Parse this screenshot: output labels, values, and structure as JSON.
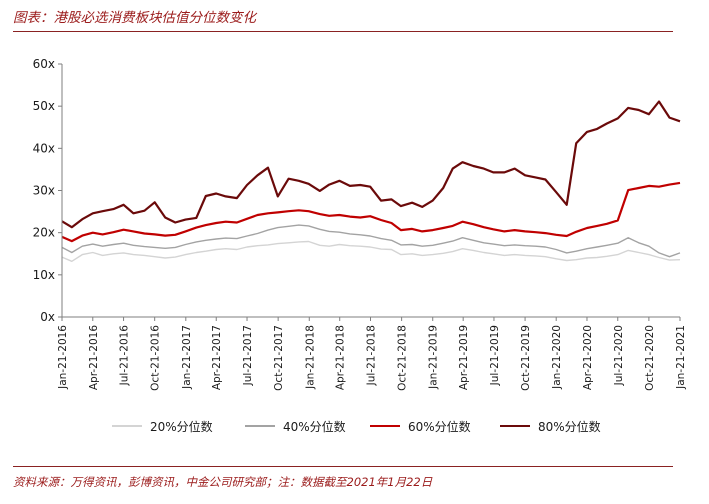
{
  "title": "图表：港股必选消费板块估值分位数变化",
  "source": "资料来源：万得资讯，彭博资讯，中金公司研究部；注：数据截至2021年1月22日",
  "chart_data": {
    "type": "line",
    "x": [
      "2016-01-21",
      "2016-02-19",
      "2016-03-21",
      "2016-04-21",
      "2016-05-20",
      "2016-06-21",
      "2016-07-21",
      "2016-08-19",
      "2016-09-21",
      "2016-10-21",
      "2016-11-21",
      "2016-12-21",
      "2017-01-20",
      "2017-02-21",
      "2017-03-21",
      "2017-04-21",
      "2017-05-19",
      "2017-06-21",
      "2017-07-21",
      "2017-08-21",
      "2017-09-21",
      "2017-10-20",
      "2017-11-21",
      "2017-12-21",
      "2018-01-19",
      "2018-02-21",
      "2018-03-21",
      "2018-04-20",
      "2018-05-21",
      "2018-06-21",
      "2018-07-20",
      "2018-08-21",
      "2018-09-21",
      "2018-10-19",
      "2018-11-21",
      "2018-12-21",
      "2019-01-21",
      "2019-02-21",
      "2019-03-21",
      "2019-04-19",
      "2019-05-21",
      "2019-06-21",
      "2019-07-19",
      "2019-08-21",
      "2019-09-20",
      "2019-10-21",
      "2019-11-21",
      "2019-12-20",
      "2020-01-21",
      "2020-02-21",
      "2020-03-20",
      "2020-04-21",
      "2020-05-21",
      "2020-06-19",
      "2020-07-21",
      "2020-08-21",
      "2020-09-21",
      "2020-10-21",
      "2020-11-20",
      "2020-12-21",
      "2021-01-21"
    ],
    "series": [
      {
        "name": "20%分位数",
        "color": "#d4d4d4",
        "values": [
          14.2,
          13.2,
          14.8,
          15.3,
          14.6,
          15.0,
          15.2,
          14.8,
          14.6,
          14.3,
          14.0,
          14.2,
          14.8,
          15.3,
          15.6,
          16.0,
          16.2,
          16.0,
          16.6,
          16.9,
          17.1,
          17.4,
          17.6,
          17.8,
          17.9,
          17.0,
          16.8,
          17.2,
          16.9,
          16.8,
          16.6,
          16.1,
          16.0,
          14.8,
          15.0,
          14.6,
          14.8,
          15.1,
          15.5,
          16.2,
          15.8,
          15.3,
          15.0,
          14.6,
          14.8,
          14.6,
          14.5,
          14.3,
          13.8,
          13.4,
          13.6,
          14.0,
          14.1,
          14.4,
          14.8,
          15.8,
          15.3,
          14.8,
          14.1,
          13.5,
          13.6
        ]
      },
      {
        "name": "40%分位数",
        "color": "#a3a3a3",
        "values": [
          16.5,
          15.3,
          16.8,
          17.3,
          16.8,
          17.2,
          17.5,
          17.0,
          16.7,
          16.5,
          16.3,
          16.5,
          17.2,
          17.8,
          18.2,
          18.5,
          18.7,
          18.6,
          19.2,
          19.8,
          20.6,
          21.2,
          21.5,
          21.8,
          21.6,
          20.8,
          20.3,
          20.1,
          19.7,
          19.5,
          19.2,
          18.6,
          18.2,
          17.1,
          17.2,
          16.8,
          17.0,
          17.5,
          18.0,
          18.8,
          18.2,
          17.6,
          17.3,
          16.9,
          17.1,
          16.9,
          16.8,
          16.6,
          16.0,
          15.2,
          15.6,
          16.2,
          16.6,
          17.0,
          17.5,
          18.8,
          17.6,
          16.8,
          15.2,
          14.3,
          15.2
        ]
      },
      {
        "name": "60%分位数",
        "color": "#c00000",
        "values": [
          19.0,
          18.0,
          19.3,
          20.0,
          19.6,
          20.1,
          20.7,
          20.3,
          19.8,
          19.6,
          19.3,
          19.5,
          20.3,
          21.2,
          21.8,
          22.3,
          22.6,
          22.4,
          23.3,
          24.2,
          24.6,
          24.8,
          25.1,
          25.3,
          25.1,
          24.4,
          24.0,
          24.2,
          23.8,
          23.6,
          23.9,
          23.0,
          22.3,
          20.6,
          20.9,
          20.3,
          20.6,
          21.1,
          21.6,
          22.6,
          22.0,
          21.3,
          20.8,
          20.3,
          20.6,
          20.3,
          20.1,
          19.9,
          19.5,
          19.2,
          20.2,
          21.1,
          21.6,
          22.1,
          22.9,
          30.1,
          30.6,
          31.1,
          30.9,
          31.4,
          31.8
        ]
      },
      {
        "name": "80%分位数",
        "color": "#6b0a0a",
        "values": [
          22.7,
          21.3,
          23.2,
          24.6,
          25.1,
          25.6,
          26.6,
          24.6,
          25.2,
          27.2,
          23.6,
          22.4,
          23.1,
          23.5,
          28.7,
          29.3,
          28.6,
          28.2,
          31.3,
          33.6,
          35.4,
          28.6,
          32.8,
          32.3,
          31.6,
          29.9,
          31.4,
          32.3,
          31.1,
          31.3,
          30.9,
          27.6,
          27.9,
          26.3,
          27.1,
          26.1,
          27.6,
          30.6,
          35.2,
          36.7,
          35.8,
          35.2,
          34.3,
          34.3,
          35.2,
          33.6,
          33.1,
          32.6,
          29.6,
          26.6,
          41.2,
          43.9,
          44.6,
          45.9,
          47.1,
          49.6,
          49.1,
          48.1,
          51.1,
          47.3,
          46.4
        ]
      }
    ],
    "x_tick_labels": [
      "Jan-21-2016",
      "Apr-21-2016",
      "Jul-21-2016",
      "Oct-21-2016",
      "Jan-21-2017",
      "Apr-21-2017",
      "Jul-21-2017",
      "Oct-21-2017",
      "Jan-21-2018",
      "Apr-21-2018",
      "Jul-21-2018",
      "Oct-21-2018",
      "Jan-21-2019",
      "Apr-21-2019",
      "Jul-21-2019",
      "Oct-21-2019",
      "Jan-21-2020",
      "Apr-21-2020",
      "Jul-21-2020",
      "Oct-21-2020",
      "Jan-21-2021"
    ],
    "y_tick_labels": [
      "0x",
      "10x",
      "20x",
      "30x",
      "40x",
      "50x",
      "60x"
    ],
    "ylim": [
      0,
      60
    ],
    "grid": false,
    "legend_position": "bottom"
  }
}
